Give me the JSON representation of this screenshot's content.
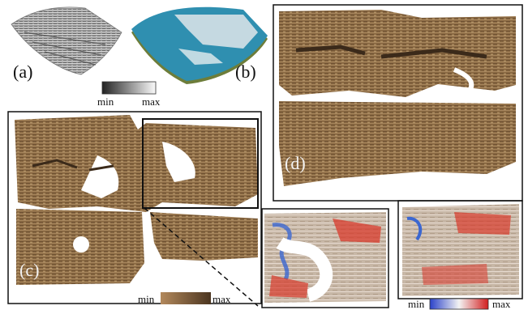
{
  "panels": {
    "a": {
      "label": "(a)"
    },
    "b": {
      "label": "(b)"
    },
    "c": {
      "label": "(c)"
    },
    "d": {
      "label": "(d)"
    }
  },
  "colorbars": {
    "gray": {
      "min": "min",
      "max": "max"
    },
    "brown": {
      "min": "min",
      "max": "max"
    },
    "bluered": {
      "min": "min",
      "max": "max"
    }
  },
  "colors": {
    "papyrus": "#8a6a44",
    "papyrus_dark": "#5e4528",
    "ink": "#3b2a1a",
    "blue_surface": "#2f8fb0",
    "heat_red": "#d8392b",
    "heat_blue": "#3b67d1"
  }
}
